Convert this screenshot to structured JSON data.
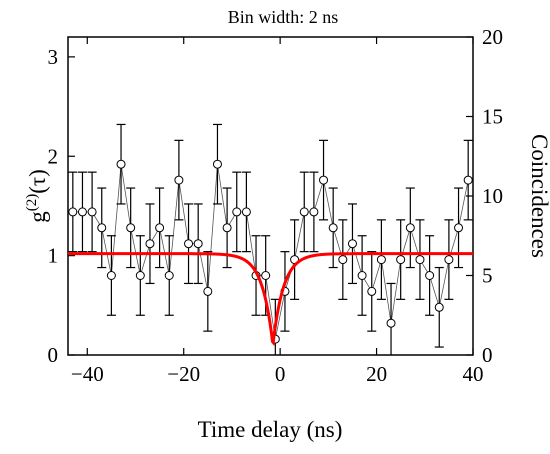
{
  "chart_data": {
    "type": "scatter",
    "title": "Bin width: 2 ns",
    "xlabel": "Time delay (ns)",
    "ylabel_main": "g",
    "ylabel_sup": "(2)",
    "ylabel_tail": "(τ)",
    "ylabel_right": "Coincidences",
    "xlim": [
      -44,
      40
    ],
    "ylim": [
      0,
      3.2
    ],
    "ylim_right": [
      0,
      20
    ],
    "grid": false,
    "x_ticks": [
      -40,
      -20,
      0,
      20,
      40
    ],
    "x_tick_labels": [
      "−40",
      "−20",
      "0",
      "20",
      "40"
    ],
    "y_ticks": [
      0,
      1,
      2,
      3
    ],
    "y_tick_labels": [
      "0",
      "1",
      "2",
      "3"
    ],
    "y_right_ticks": [
      0,
      5,
      10,
      15,
      20
    ],
    "y_right_tick_labels": [
      "0",
      "5",
      "10",
      "15",
      "20"
    ],
    "series": [
      {
        "kind": "measured",
        "marker": "open-circle",
        "color": "#000000",
        "error_bar": 0.4,
        "x": [
          -43,
          -41,
          -39,
          -37,
          -35,
          -33,
          -31,
          -29,
          -27,
          -25,
          -23,
          -21,
          -19,
          -17,
          -15,
          -13,
          -11,
          -9,
          -7,
          -5,
          -3,
          -1,
          1,
          3,
          5,
          7,
          9,
          11,
          13,
          15,
          17,
          19,
          21,
          23,
          25,
          27,
          29,
          31,
          33,
          35,
          37,
          39
        ],
        "y": [
          1.44,
          1.44,
          1.44,
          1.28,
          0.8,
          1.92,
          1.28,
          0.8,
          1.12,
          1.28,
          0.8,
          1.76,
          1.12,
          1.12,
          0.64,
          1.92,
          1.28,
          1.44,
          1.44,
          0.8,
          0.8,
          0.16,
          0.64,
          0.96,
          1.44,
          1.44,
          1.76,
          1.28,
          0.96,
          1.12,
          0.8,
          0.64,
          0.96,
          0.32,
          0.96,
          1.28,
          0.96,
          0.8,
          0.48,
          0.96,
          1.28,
          1.76
        ]
      },
      {
        "kind": "fit",
        "color": "#ff0000",
        "baseline": 1.02,
        "center": -1.5,
        "depth": 0.9,
        "width": 2.2
      }
    ]
  }
}
